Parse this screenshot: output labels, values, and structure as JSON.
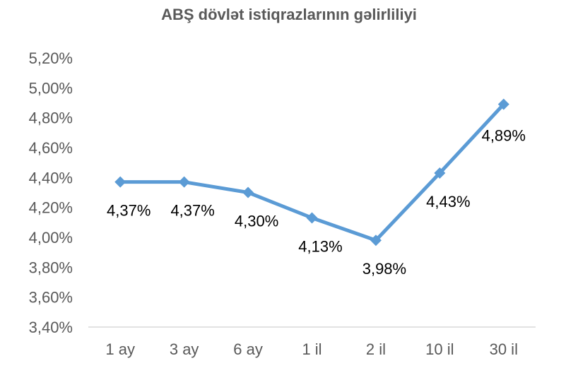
{
  "chart_data": {
    "type": "line",
    "title": "ABŞ dövlət istiqrazlarının gəlirliliyi",
    "categories": [
      "1 ay",
      "3 ay",
      "6 ay",
      "1 il",
      "2 il",
      "10 il",
      "30 il"
    ],
    "series": [
      {
        "values": [
          4.37,
          4.37,
          4.3,
          4.13,
          3.98,
          4.43,
          4.89
        ],
        "data_labels": [
          "4,37%",
          "4,37%",
          "4,30%",
          "4,13%",
          "3,98%",
          "4,43%",
          "4,89%"
        ],
        "color": "#5B9BD5",
        "marker": "diamond"
      }
    ],
    "ylim": [
      3.4,
      5.2
    ],
    "y_ticks": [
      "5,20%",
      "5,00%",
      "4,80%",
      "4,60%",
      "4,40%",
      "4,20%",
      "4,00%",
      "3,80%",
      "3,60%",
      "3,40%"
    ],
    "y_tick_values": [
      5.2,
      5.0,
      4.8,
      4.6,
      4.4,
      4.2,
      4.0,
      3.8,
      3.6,
      3.4
    ],
    "xlabel": "",
    "ylabel": "",
    "grid": false,
    "legend": "none"
  }
}
